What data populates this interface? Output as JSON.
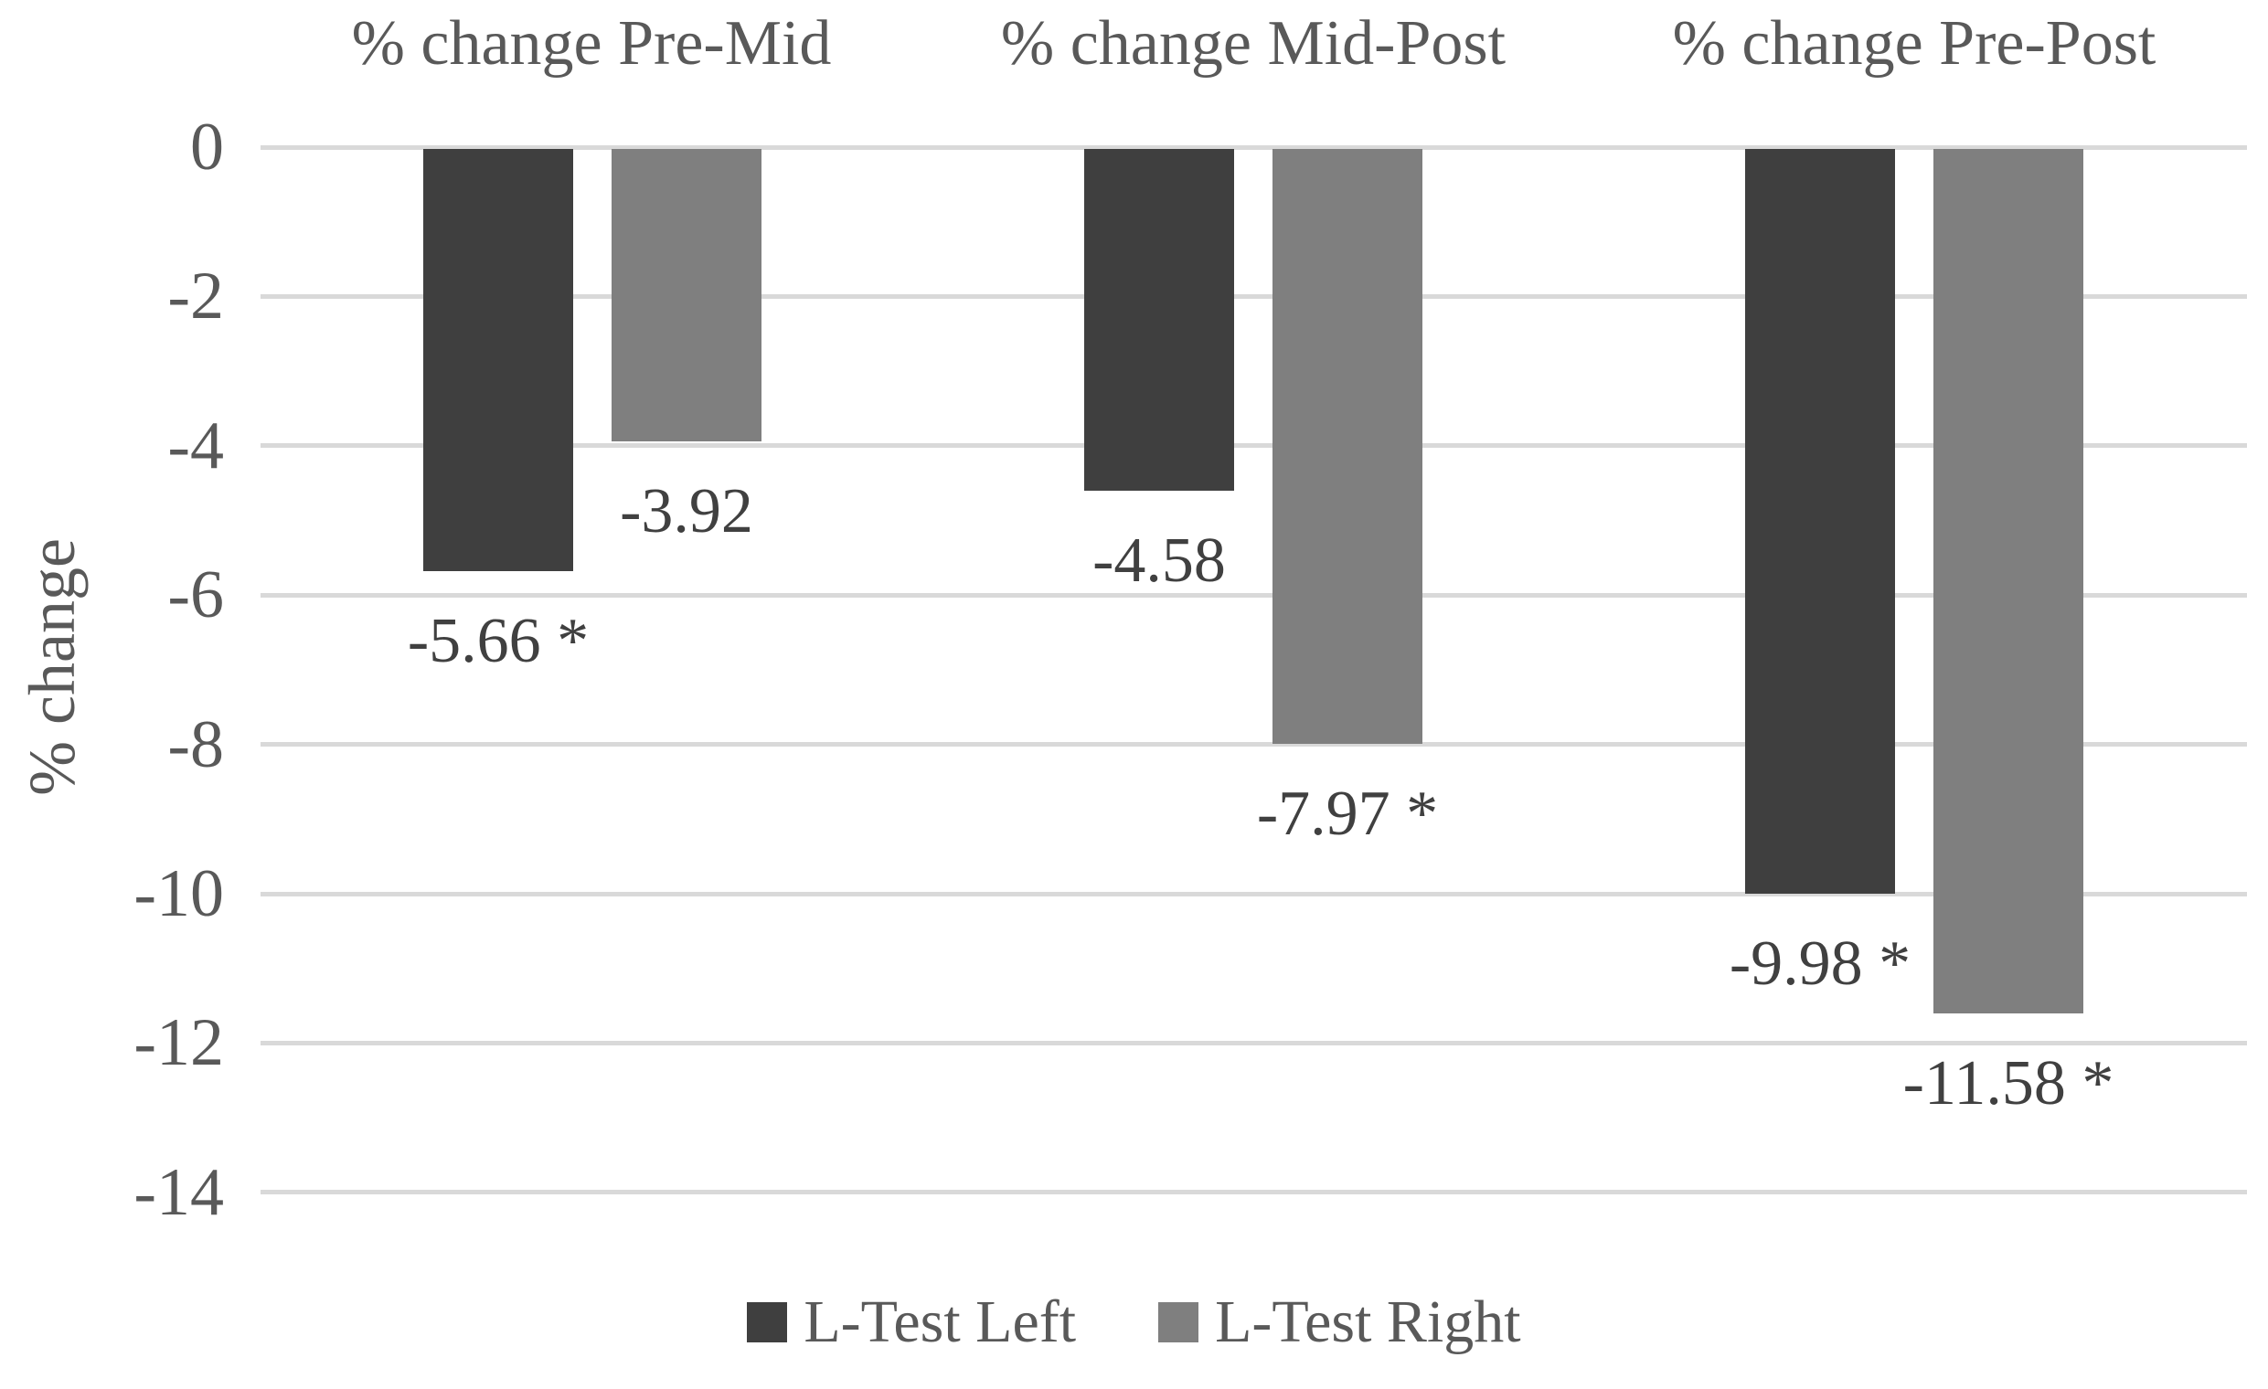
{
  "figure": {
    "background": "#ffffff",
    "text_color": "#595959",
    "data_label_color": "#404040",
    "gridline_color": "#d9d9d9"
  },
  "y_axis": {
    "label": "% change",
    "ticks": [
      "0",
      "-2",
      "-4",
      "-6",
      "-8",
      "-10",
      "-12",
      "-14"
    ]
  },
  "legend": [
    {
      "label": "L-Test Left",
      "color": "#3f3f3f"
    },
    {
      "label": "L-Test Right",
      "color": "#7f7f7f"
    }
  ],
  "chart_data": {
    "type": "bar",
    "title": "",
    "xlabel": "",
    "ylabel": "% change",
    "ylim": [
      -14,
      0
    ],
    "ytick_step": 2,
    "grid": "horizontal",
    "legend_position": "bottom",
    "categories": [
      "% change Pre-Mid",
      "% change Mid-Post",
      "% change Pre-Post"
    ],
    "series": [
      {
        "name": "L-Test Left",
        "color": "#3f3f3f",
        "values": [
          -5.66,
          -4.58,
          -9.98
        ],
        "labels": [
          "-5.66 *",
          "-4.58",
          "-9.98 *"
        ]
      },
      {
        "name": "L-Test Right",
        "color": "#7f7f7f",
        "values": [
          -3.92,
          -7.97,
          -11.58
        ],
        "labels": [
          "-3.92",
          "-7.97 *",
          "-11.58 *"
        ]
      }
    ]
  }
}
